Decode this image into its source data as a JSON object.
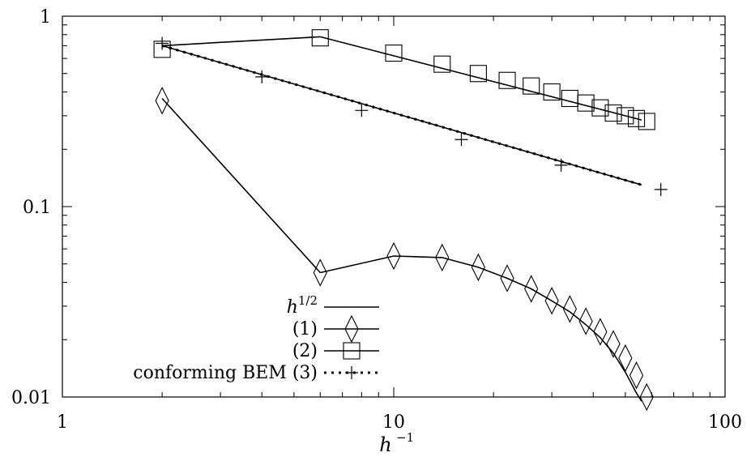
{
  "chart_data": {
    "type": "line",
    "xscale": "log",
    "yscale": "log",
    "xlim": [
      1,
      100
    ],
    "ylim": [
      0.01,
      1
    ],
    "xticks": [
      1,
      10,
      100
    ],
    "xtick_labels": [
      "1",
      "10",
      "100"
    ],
    "yticks": [
      0.01,
      0.1,
      1
    ],
    "ytick_labels": [
      "0.01",
      "0.1",
      "1"
    ],
    "xlabel": {
      "base": "h",
      "sup": "−1"
    },
    "ylabel": "",
    "legend_position": "lower-left",
    "series": [
      {
        "name": "h",
        "name_sup": "1/2",
        "marker": "none",
        "line": "solid",
        "segments": [
          {
            "x": [
              2,
              6
            ],
            "y": [
              0.7,
              0.78
            ]
          },
          {
            "x": [
              6,
              56
            ],
            "y": [
              0.78,
              0.285
            ]
          },
          {
            "x": [
              2,
              56
            ],
            "y": [
              0.7,
              0.13
            ]
          },
          {
            "x": [
              2,
              6
            ],
            "y": [
              0.37,
              0.045
            ]
          },
          {
            "x": [
              6,
              10,
              14,
              18,
              22,
              26,
              30,
              34,
              38,
              42,
              46,
              50,
              54,
              56
            ],
            "y": [
              0.045,
              0.055,
              0.054,
              0.048,
              0.042,
              0.037,
              0.032,
              0.028,
              0.024,
              0.0205,
              0.017,
              0.0135,
              0.0105,
              0.0095
            ]
          }
        ]
      },
      {
        "name": "(1)",
        "marker": "diamond",
        "line": "none",
        "x": [
          2,
          6,
          10,
          14,
          18,
          22,
          26,
          30,
          34,
          38,
          42,
          46,
          50,
          54,
          58
        ],
        "y": [
          0.36,
          0.045,
          0.055,
          0.054,
          0.048,
          0.042,
          0.037,
          0.032,
          0.029,
          0.025,
          0.022,
          0.019,
          0.016,
          0.013,
          0.01
        ]
      },
      {
        "name": "(2)",
        "marker": "square",
        "line": "none",
        "x": [
          2,
          6,
          10,
          14,
          18,
          22,
          26,
          30,
          34,
          38,
          42,
          46,
          50,
          54,
          58
        ],
        "y": [
          0.67,
          0.77,
          0.64,
          0.56,
          0.5,
          0.46,
          0.43,
          0.4,
          0.37,
          0.35,
          0.33,
          0.31,
          0.3,
          0.29,
          0.28
        ]
      },
      {
        "name": "conforming BEM (3)",
        "marker": "plus",
        "line": "dotted",
        "x": [
          2,
          4,
          8,
          16,
          32,
          64
        ],
        "y": [
          0.72,
          0.48,
          0.32,
          0.225,
          0.165,
          0.123
        ],
        "line_x": [
          2,
          56
        ],
        "line_y": [
          0.7,
          0.13
        ]
      }
    ]
  }
}
